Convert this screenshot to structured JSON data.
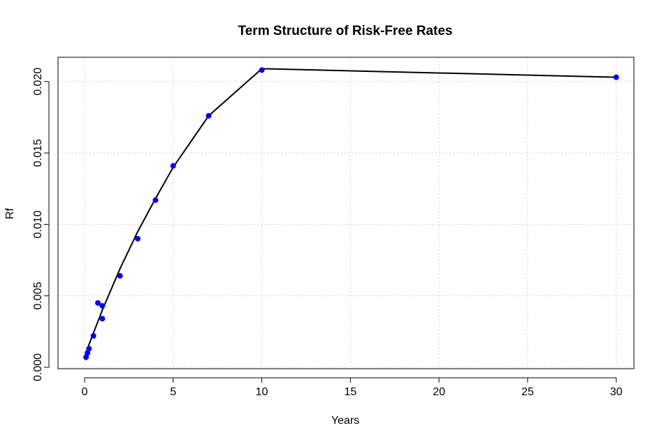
{
  "chart_data": {
    "type": "scatter",
    "title": "Term Structure of Risk-Free Rates",
    "xlabel": "Years",
    "ylabel": "Rf",
    "xlim": [
      -1.5,
      31.0
    ],
    "ylim": [
      -0.0001,
      0.0217
    ],
    "x_ticks": [
      0,
      5,
      10,
      15,
      20,
      25,
      30
    ],
    "x_tick_labels": [
      "0",
      "5",
      "10",
      "15",
      "20",
      "25",
      "30"
    ],
    "y_ticks": [
      0.0,
      0.005,
      0.01,
      0.015,
      0.02
    ],
    "y_tick_labels": [
      "0.000",
      "0.005",
      "0.010",
      "0.015",
      "0.020"
    ],
    "grid": true,
    "point_color": "#0000ff",
    "line_color": "#000000",
    "series": [
      {
        "kind": "points",
        "x": [
          0.0833,
          0.1667,
          0.25,
          0.5,
          1.0,
          0.75,
          1.0,
          2.0,
          3.0,
          4.0,
          5.0,
          7.0,
          10.0,
          30.0
        ],
        "y": [
          0.0007,
          0.001,
          0.0013,
          0.0022,
          0.0034,
          0.0045,
          0.0043,
          0.0064,
          0.009,
          0.0117,
          0.0141,
          0.0176,
          0.0208,
          0.0203
        ]
      },
      {
        "kind": "line",
        "x": [
          0.0,
          0.25,
          0.5,
          1.0,
          2.0,
          3.0,
          4.0,
          5.0,
          7.0,
          10.0,
          30.0
        ],
        "y": [
          0.0007,
          0.0016,
          0.0024,
          0.004,
          0.0069,
          0.0095,
          0.0118,
          0.014,
          0.0176,
          0.0209,
          0.0203
        ]
      }
    ]
  }
}
